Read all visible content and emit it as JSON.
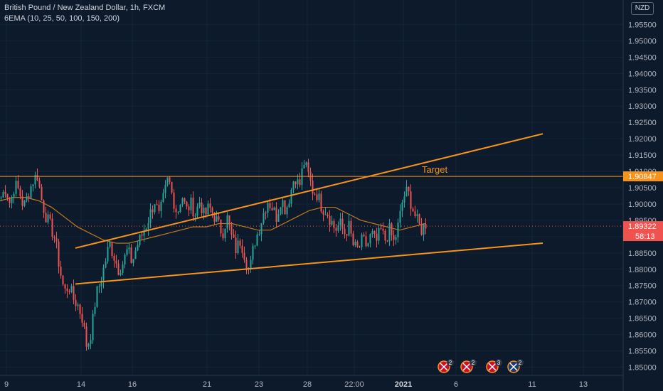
{
  "header": {
    "title": "British Pound / New Zealand Dollar, 1h, FXCM",
    "indicator": "6EMA (10, 25, 50, 100, 150, 200)",
    "currency": "NZD"
  },
  "colors": {
    "background": "#0c1a2b",
    "up": "#26a69a",
    "down": "#ef5350",
    "trendline": "#f7931a",
    "ema": "#c47a1c",
    "price_line": "#ef5350"
  },
  "chart_data": {
    "type": "candlestick",
    "symbol": "GBPNZD",
    "interval": "1h",
    "ylim": [
      1.8475,
      1.9625
    ],
    "y_ticks": [
      "1.85000",
      "1.85500",
      "1.86000",
      "1.86500",
      "1.87000",
      "1.87500",
      "1.88000",
      "1.88500",
      "1.89000",
      "1.89500",
      "1.90000",
      "1.90500",
      "1.91000",
      "1.91500",
      "1.92000",
      "1.92500",
      "1.93000",
      "1.93500",
      "1.94000",
      "1.94500",
      "1.95000",
      "1.95500"
    ],
    "x_ticks": [
      {
        "label": "9",
        "bold": false
      },
      {
        "label": "14",
        "bold": false
      },
      {
        "label": "16",
        "bold": false
      },
      {
        "label": "21",
        "bold": false
      },
      {
        "label": "23",
        "bold": false
      },
      {
        "label": "28",
        "bold": false
      },
      {
        "label": "22:00",
        "bold": false
      },
      {
        "label": "2021",
        "bold": true
      },
      {
        "label": "6",
        "bold": false
      },
      {
        "label": "11",
        "bold": false
      },
      {
        "label": "13",
        "bold": false
      }
    ],
    "path": [
      1.902,
      1.905,
      1.9,
      1.906,
      1.904,
      1.899,
      1.903,
      1.907,
      1.909,
      1.901,
      1.896,
      1.893,
      1.889,
      1.88,
      1.873,
      1.875,
      1.871,
      1.869,
      1.865,
      1.856,
      1.861,
      1.872,
      1.876,
      1.882,
      1.888,
      1.884,
      1.88,
      1.882,
      1.886,
      1.882,
      1.887,
      1.89,
      1.893,
      1.897,
      1.901,
      1.896,
      1.902,
      1.908,
      1.902,
      1.897,
      1.903,
      1.898,
      1.9,
      1.897,
      1.901,
      1.896,
      1.899,
      1.897,
      1.894,
      1.891,
      1.896,
      1.89,
      1.886,
      1.889,
      1.884,
      1.879,
      1.888,
      1.892,
      1.897,
      1.901,
      1.899,
      1.896,
      1.902,
      1.898,
      1.903,
      1.909,
      1.905,
      1.913,
      1.909,
      1.904,
      1.903,
      1.899,
      1.898,
      1.895,
      1.892,
      1.894,
      1.891,
      1.893,
      1.887,
      1.886,
      1.889,
      1.887,
      1.891,
      1.888,
      1.892,
      1.889,
      1.892,
      1.888,
      1.894,
      1.902,
      1.904,
      1.899,
      1.895,
      1.892,
      1.894
    ],
    "ema_values": [
      1.901,
      1.902,
      1.902,
      1.901,
      1.899,
      1.896,
      1.893,
      1.891,
      1.889,
      1.888,
      1.888,
      1.889,
      1.89,
      1.891,
      1.892,
      1.893,
      1.893,
      1.894,
      1.894,
      1.893,
      1.892,
      1.892,
      1.894,
      1.896,
      1.898,
      1.899,
      1.899,
      1.897,
      1.895,
      1.894,
      1.893,
      1.892,
      1.893,
      1.894
    ],
    "trendlines": [
      {
        "name": "upper",
        "x": [
          "14",
          "13"
        ],
        "y": [
          1.8865,
          1.9215
        ]
      },
      {
        "name": "lower",
        "x": [
          "14",
          "13"
        ],
        "y": [
          1.8755,
          1.888
        ]
      }
    ],
    "target": {
      "label": "Target",
      "value": 1.90847
    },
    "price_labels": {
      "target": "1.90847",
      "last": "1.89322",
      "countdown": "58:13"
    },
    "current_price": 1.89322,
    "events": [
      {
        "flag": "gb",
        "count": "2"
      },
      {
        "flag": "gb",
        "count": "2"
      },
      {
        "flag": "gb",
        "count": "3"
      },
      {
        "flag": "nz",
        "count": "2"
      }
    ]
  }
}
